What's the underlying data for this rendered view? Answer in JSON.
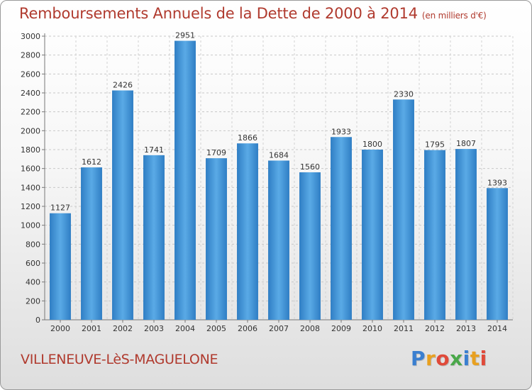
{
  "chart_data": {
    "type": "bar",
    "title": "Remboursements Annuels de la Dette de 2000 à 2014",
    "unit_label": "(en milliers d'€)",
    "categories": [
      "2000",
      "2001",
      "2002",
      "2003",
      "2004",
      "2005",
      "2006",
      "2007",
      "2008",
      "2009",
      "2010",
      "2011",
      "2012",
      "2013",
      "2014"
    ],
    "values": [
      1127,
      1612,
      2426,
      1741,
      2951,
      1709,
      1866,
      1684,
      1560,
      1933,
      1800,
      2330,
      1795,
      1807,
      1393
    ],
    "ylim": [
      0,
      3000
    ],
    "yticks": [
      0,
      200,
      400,
      600,
      800,
      1000,
      1200,
      1400,
      1600,
      1800,
      2000,
      2200,
      2400,
      2600,
      2800,
      3000
    ],
    "grid": true,
    "bar_color": "#4f9fdf"
  },
  "footer": {
    "place_name": "VILLENEUVE-LèS-MAGUELONE",
    "logo_letters": [
      {
        "char": "P",
        "color": "#3a7fd0"
      },
      {
        "char": "r",
        "color": "#e8a020"
      },
      {
        "char": "o",
        "color": "#e04a3a"
      },
      {
        "char": "x",
        "color": "#4aa84a"
      },
      {
        "char": "i",
        "color": "#3a7fd0"
      },
      {
        "char": "t",
        "color": "#e8a020"
      },
      {
        "char": "i",
        "color": "#e04a3a"
      }
    ]
  }
}
